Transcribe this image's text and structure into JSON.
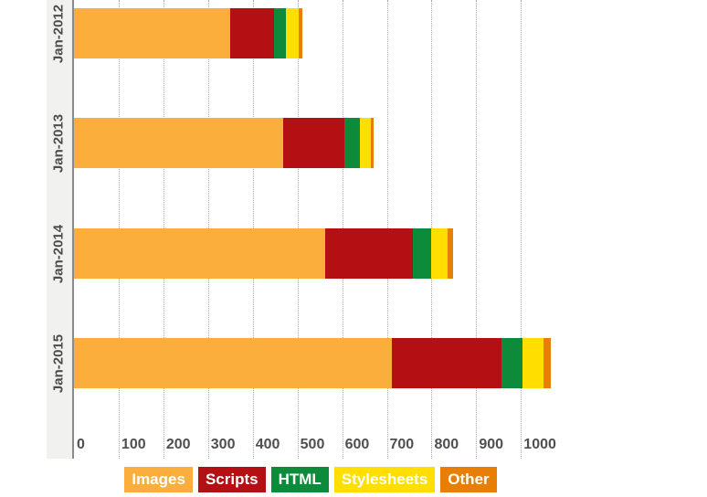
{
  "chart_data": {
    "type": "bar",
    "orientation": "horizontal",
    "stacked": true,
    "categories": [
      "Jan-2012",
      "Jan-2013",
      "Jan-2014",
      "Jan-2015"
    ],
    "series": [
      {
        "name": "Images",
        "color": "#FBAE3C",
        "values": [
          350,
          468,
          562,
          711
        ]
      },
      {
        "name": "Scripts",
        "color": "#B40F12",
        "values": [
          98,
          136,
          196,
          245
        ]
      },
      {
        "name": "HTML",
        "color": "#0E8A3B",
        "values": [
          27,
          36,
          42,
          48
        ]
      },
      {
        "name": "Stylesheets",
        "color": "#FFDE00",
        "values": [
          27,
          25,
          36,
          47
        ]
      },
      {
        "name": "Other",
        "color": "#E87E04",
        "values": [
          8,
          6,
          13,
          16
        ]
      }
    ],
    "x_axis": {
      "ticks": [
        0,
        100,
        200,
        300,
        400,
        500,
        600,
        700,
        800,
        900,
        1000
      ],
      "min": 0,
      "max": 1100,
      "grid": "dotted-vertical"
    },
    "legend": {
      "position": "bottom",
      "items": [
        "Images",
        "Scripts",
        "HTML",
        "Stylesheets",
        "Other"
      ]
    }
  },
  "ui_colors": {
    "background": "#FFFFFF",
    "category_strip": "#F1F1EF",
    "axis_line": "#8A8A8A",
    "gridline": "#A9A9A9",
    "label_text": "#4D4D4D"
  }
}
